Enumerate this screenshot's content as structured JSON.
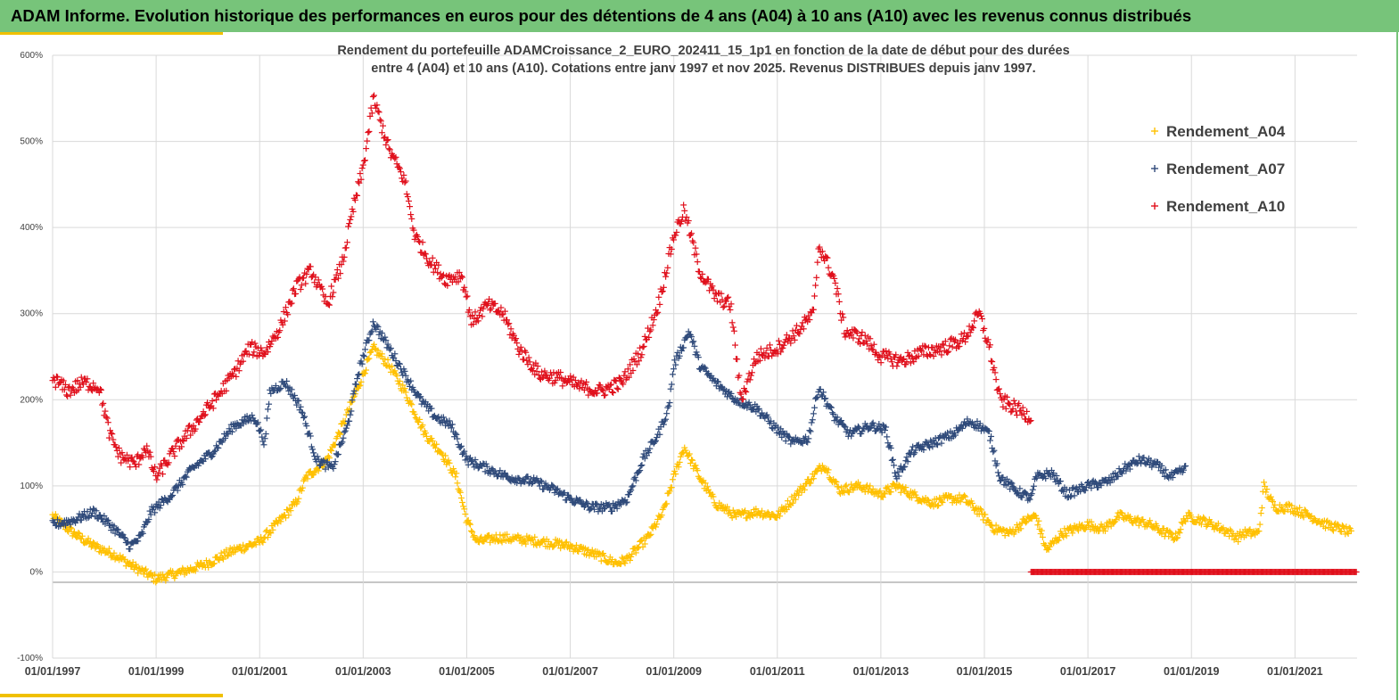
{
  "header": {
    "title": "ADAM Informe. Evolution historique des performances en euros pour des détentions de 4 ans (A04) à 10 ans (A10) avec les revenus connus distribués"
  },
  "colors": {
    "banner": "#77c47a",
    "accent": "#f0c000",
    "A04": "#ffc000",
    "A07": "#2f4a7a",
    "A10": "#e0101c",
    "grid": "#d9d9d9",
    "axis": "#8c8c8c"
  },
  "chart_data": {
    "type": "scatter",
    "title_line1": "Rendement du portefeuille ADAMCroissance_2_EURO_202411_15_1p1  en fonction de la date de début pour des durées",
    "title_line2": "entre 4 (A04) et 10 ans (A10). Cotations  entre janv 1997 et nov 2025. Revenus DISTRIBUES depuis janv 1997.",
    "x_range": [
      1997.0,
      2022.2
    ],
    "x_ticks": [
      1997,
      1999,
      2001,
      2003,
      2005,
      2007,
      2009,
      2011,
      2013,
      2015,
      2017,
      2019,
      2021
    ],
    "x_tick_labels": [
      "01/01/1997",
      "01/01/1999",
      "01/01/2001",
      "01/01/2003",
      "01/01/2005",
      "01/01/2007",
      "01/01/2009",
      "01/01/2011",
      "01/01/2013",
      "01/01/2015",
      "01/01/2017",
      "01/01/2019",
      "01/01/2021"
    ],
    "ylim": [
      -100,
      600
    ],
    "y_ticks": [
      -100,
      0,
      100,
      200,
      300,
      400,
      500,
      600
    ],
    "y_tick_labels": [
      "-100%",
      "0%",
      "100%",
      "200%",
      "300%",
      "400%",
      "500%",
      "600%"
    ],
    "legend_position": "top-right",
    "series": [
      {
        "name": "Rendement_A04",
        "color": "#ffc000",
        "keyframes": [
          [
            1997.0,
            65
          ],
          [
            1997.4,
            45
          ],
          [
            1997.8,
            30
          ],
          [
            1998.2,
            20
          ],
          [
            1998.6,
            5
          ],
          [
            1999.0,
            -8
          ],
          [
            1999.5,
            0
          ],
          [
            2000.0,
            10
          ],
          [
            2000.5,
            25
          ],
          [
            2001.0,
            35
          ],
          [
            2001.4,
            60
          ],
          [
            2001.7,
            80
          ],
          [
            2001.9,
            110
          ],
          [
            2002.3,
            130
          ],
          [
            2002.6,
            170
          ],
          [
            2002.9,
            215
          ],
          [
            2003.2,
            260
          ],
          [
            2003.5,
            240
          ],
          [
            2003.8,
            210
          ],
          [
            2004.2,
            160
          ],
          [
            2004.5,
            140
          ],
          [
            2004.8,
            110
          ],
          [
            2005.0,
            60
          ],
          [
            2005.2,
            35
          ],
          [
            2005.6,
            40
          ],
          [
            2006.0,
            38
          ],
          [
            2006.5,
            35
          ],
          [
            2007.0,
            30
          ],
          [
            2007.5,
            20
          ],
          [
            2007.9,
            10
          ],
          [
            2008.1,
            15
          ],
          [
            2008.5,
            40
          ],
          [
            2008.8,
            70
          ],
          [
            2009.0,
            110
          ],
          [
            2009.2,
            145
          ],
          [
            2009.5,
            110
          ],
          [
            2009.8,
            80
          ],
          [
            2010.2,
            65
          ],
          [
            2010.6,
            70
          ],
          [
            2011.0,
            65
          ],
          [
            2011.3,
            85
          ],
          [
            2011.6,
            105
          ],
          [
            2011.9,
            125
          ],
          [
            2012.2,
            95
          ],
          [
            2012.6,
            100
          ],
          [
            2013.0,
            90
          ],
          [
            2013.3,
            100
          ],
          [
            2013.6,
            90
          ],
          [
            2014.0,
            80
          ],
          [
            2014.3,
            85
          ],
          [
            2014.6,
            85
          ],
          [
            2014.9,
            70
          ],
          [
            2015.2,
            50
          ],
          [
            2015.5,
            45
          ],
          [
            2015.8,
            60
          ],
          [
            2016.0,
            65
          ],
          [
            2016.2,
            25
          ],
          [
            2016.5,
            45
          ],
          [
            2017.0,
            55
          ],
          [
            2017.3,
            50
          ],
          [
            2017.6,
            65
          ],
          [
            2017.9,
            60
          ],
          [
            2018.2,
            55
          ],
          [
            2018.5,
            45
          ],
          [
            2018.7,
            40
          ],
          [
            2018.9,
            65
          ],
          [
            2019.2,
            60
          ],
          [
            2019.6,
            50
          ],
          [
            2019.9,
            40
          ],
          [
            2020.0,
            45
          ],
          [
            2020.3,
            45
          ],
          [
            2020.4,
            100
          ],
          [
            2020.6,
            75
          ],
          [
            2020.9,
            75
          ],
          [
            2021.3,
            65
          ],
          [
            2021.6,
            55
          ],
          [
            2021.9,
            50
          ],
          [
            2022.1,
            45
          ]
        ]
      },
      {
        "name": "Rendement_A07",
        "color": "#2f4a7a",
        "keyframes": [
          [
            1997.0,
            55
          ],
          [
            1997.4,
            60
          ],
          [
            1997.8,
            70
          ],
          [
            1998.2,
            50
          ],
          [
            1998.5,
            30
          ],
          [
            1998.7,
            40
          ],
          [
            1998.9,
            70
          ],
          [
            1999.3,
            90
          ],
          [
            1999.7,
            120
          ],
          [
            2000.1,
            140
          ],
          [
            2000.5,
            170
          ],
          [
            2000.9,
            180
          ],
          [
            2001.1,
            150
          ],
          [
            2001.2,
            210
          ],
          [
            2001.5,
            220
          ],
          [
            2001.8,
            190
          ],
          [
            2002.1,
            130
          ],
          [
            2002.4,
            120
          ],
          [
            2002.7,
            170
          ],
          [
            2002.9,
            230
          ],
          [
            2003.2,
            290
          ],
          [
            2003.5,
            260
          ],
          [
            2003.8,
            230
          ],
          [
            2004.1,
            200
          ],
          [
            2004.4,
            180
          ],
          [
            2004.7,
            170
          ],
          [
            2005.0,
            130
          ],
          [
            2005.4,
            120
          ],
          [
            2005.8,
            110
          ],
          [
            2006.3,
            105
          ],
          [
            2006.7,
            95
          ],
          [
            2007.0,
            85
          ],
          [
            2007.4,
            75
          ],
          [
            2007.8,
            75
          ],
          [
            2008.1,
            85
          ],
          [
            2008.4,
            130
          ],
          [
            2008.7,
            160
          ],
          [
            2008.9,
            190
          ],
          [
            2009.0,
            240
          ],
          [
            2009.3,
            280
          ],
          [
            2009.5,
            240
          ],
          [
            2009.8,
            220
          ],
          [
            2010.2,
            200
          ],
          [
            2010.6,
            190
          ],
          [
            2011.0,
            165
          ],
          [
            2011.3,
            150
          ],
          [
            2011.6,
            155
          ],
          [
            2011.8,
            215
          ],
          [
            2012.1,
            180
          ],
          [
            2012.4,
            160
          ],
          [
            2012.8,
            170
          ],
          [
            2013.1,
            165
          ],
          [
            2013.3,
            110
          ],
          [
            2013.6,
            140
          ],
          [
            2014.0,
            150
          ],
          [
            2014.4,
            160
          ],
          [
            2014.7,
            175
          ],
          [
            2014.9,
            170
          ],
          [
            2015.1,
            160
          ],
          [
            2015.3,
            110
          ],
          [
            2015.6,
            95
          ],
          [
            2015.9,
            85
          ],
          [
            2016.0,
            110
          ],
          [
            2016.3,
            115
          ],
          [
            2016.6,
            90
          ],
          [
            2017.0,
            100
          ],
          [
            2017.4,
            105
          ],
          [
            2017.7,
            120
          ],
          [
            2018.0,
            130
          ],
          [
            2018.3,
            125
          ],
          [
            2018.6,
            110
          ],
          [
            2018.9,
            120
          ]
        ]
      },
      {
        "name": "Rendement_A10",
        "color": "#e0101c",
        "keyframes": [
          [
            1997.0,
            225
          ],
          [
            1997.3,
            210
          ],
          [
            1997.6,
            220
          ],
          [
            1997.9,
            215
          ],
          [
            1998.1,
            160
          ],
          [
            1998.3,
            135
          ],
          [
            1998.6,
            125
          ],
          [
            1998.8,
            145
          ],
          [
            1999.0,
            110
          ],
          [
            1999.4,
            145
          ],
          [
            1999.8,
            175
          ],
          [
            2000.2,
            205
          ],
          [
            2000.5,
            230
          ],
          [
            2000.8,
            260
          ],
          [
            2001.1,
            255
          ],
          [
            2001.4,
            285
          ],
          [
            2001.7,
            330
          ],
          [
            2002.0,
            350
          ],
          [
            2002.3,
            310
          ],
          [
            2002.6,
            360
          ],
          [
            2002.8,
            420
          ],
          [
            2003.0,
            470
          ],
          [
            2003.2,
            550
          ],
          [
            2003.5,
            490
          ],
          [
            2003.8,
            455
          ],
          [
            2004.0,
            390
          ],
          [
            2004.3,
            360
          ],
          [
            2004.6,
            340
          ],
          [
            2004.9,
            345
          ],
          [
            2005.1,
            290
          ],
          [
            2005.4,
            310
          ],
          [
            2005.7,
            300
          ],
          [
            2006.0,
            260
          ],
          [
            2006.4,
            230
          ],
          [
            2006.8,
            225
          ],
          [
            2007.2,
            215
          ],
          [
            2007.6,
            210
          ],
          [
            2008.0,
            220
          ],
          [
            2008.4,
            260
          ],
          [
            2008.7,
            310
          ],
          [
            2009.0,
            390
          ],
          [
            2009.2,
            420
          ],
          [
            2009.5,
            350
          ],
          [
            2009.8,
            320
          ],
          [
            2010.1,
            310
          ],
          [
            2010.3,
            200
          ],
          [
            2010.6,
            250
          ],
          [
            2011.0,
            260
          ],
          [
            2011.4,
            280
          ],
          [
            2011.7,
            300
          ],
          [
            2011.8,
            380
          ],
          [
            2012.1,
            340
          ],
          [
            2012.3,
            280
          ],
          [
            2012.7,
            270
          ],
          [
            2013.0,
            250
          ],
          [
            2013.4,
            245
          ],
          [
            2013.8,
            255
          ],
          [
            2014.2,
            260
          ],
          [
            2014.6,
            270
          ],
          [
            2014.9,
            300
          ],
          [
            2015.1,
            260
          ],
          [
            2015.3,
            200
          ],
          [
            2015.6,
            190
          ],
          [
            2015.9,
            180
          ]
        ]
      }
    ],
    "zero_series": {
      "name": "Rendement_A10",
      "x_from": 2015.9,
      "x_to": 2022.2,
      "value": 0
    }
  }
}
